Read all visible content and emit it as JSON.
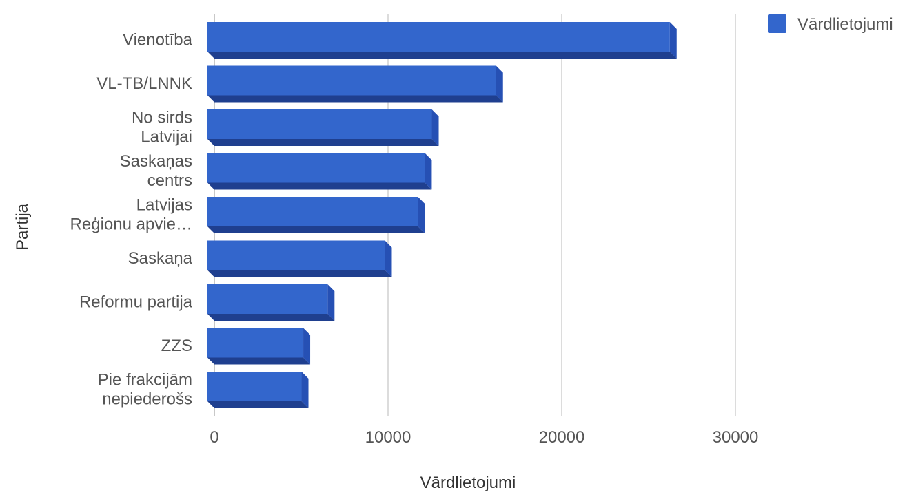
{
  "chart_data": {
    "type": "bar",
    "orientation": "horizontal",
    "categories": [
      "Vienotība",
      "VL-TB/LNNK",
      "No sirds Latvijai",
      "Saskaņas centrs",
      "Latvijas Reģionu apvie…",
      "Saskaņa",
      "Reformu partija",
      "ZZS",
      "Pie frakcijām nepiederošs"
    ],
    "category_label_lines": [
      [
        "Vienotība"
      ],
      [
        "VL-TB/LNNK"
      ],
      [
        "No sirds",
        "Latvijai"
      ],
      [
        "Saskaņas",
        "centrs"
      ],
      [
        "Latvijas",
        "Reģionu apvie…"
      ],
      [
        "Saskaņa"
      ],
      [
        "Reformu partija"
      ],
      [
        "ZZS"
      ],
      [
        "Pie frakcijām",
        "nepiederošs"
      ]
    ],
    "series": [
      {
        "name": "Vārdlietojumi",
        "values": [
          26300,
          16300,
          12600,
          12200,
          11800,
          9900,
          6600,
          5200,
          5100
        ]
      }
    ],
    "xlabel": "Vārdlietojumi",
    "ylabel": "Partija",
    "xlim": [
      0,
      30000
    ],
    "xticks": [
      0,
      10000,
      20000,
      30000
    ],
    "xtick_labels": [
      "0",
      "10000",
      "20000",
      "30000"
    ],
    "grid": true,
    "legend_position": "top-right",
    "style": "3d",
    "colors": {
      "bar_face": "#3366cc",
      "bar_side": "#2650b4",
      "bar_bottom": "#1f3f8f",
      "grid": "#dcdcdc",
      "text": "#555555",
      "title_text": "#333333"
    }
  }
}
